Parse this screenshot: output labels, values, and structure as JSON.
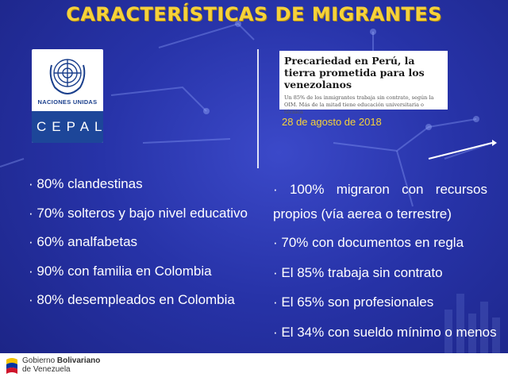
{
  "slide": {
    "title": "CARACTERÍSTICAS DE MIGRANTES"
  },
  "logo": {
    "org_name": "NACIONES UNIDAS",
    "cepal": "CEPAL"
  },
  "news_clip": {
    "headline": "Precariedad en Perú, la tierra prometida para los venezolanos",
    "subhead": "Un 85% de los inmigrantes trabaja sin contrato, según la OIM. Más de la mitad tiene educación universitaria o técnica",
    "date": "28 de agosto de 2018"
  },
  "left_stats": [
    "· 80% clandestinas",
    "· 70% solteros y bajo nivel educativo",
    "· 60% analfabetas",
    "· 90% con familia en Colombia",
    "· 80% desempleados en Colombia"
  ],
  "right_stats": {
    "first_words": [
      "·",
      "100%",
      "migraron",
      "con",
      "recursos"
    ],
    "first_continuation": "propios (vía aerea o terrestre)",
    "items": [
      "· 70% con documentos en regla",
      "· El 85% trabaja sin contrato",
      "· El 65% son profesionales",
      "· El 34% con sueldo mínimo o menos"
    ]
  },
  "footer": {
    "line1_prefix": "Gobierno ",
    "line1_bold": "Bolivariano",
    "line2": "de Venezuela"
  },
  "colors": {
    "background": "#2733a8",
    "title": "#f6d23a",
    "accent_date": "#f6d23a"
  },
  "icons": [
    "un-emblem-icon",
    "venezuela-flag-icon"
  ]
}
